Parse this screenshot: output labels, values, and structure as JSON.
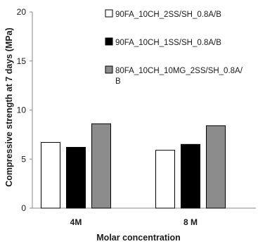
{
  "chart_data": {
    "type": "bar",
    "categories": [
      "4M",
      "8 M"
    ],
    "series": [
      {
        "name": "90FA_10CH_2SS/SH_0.8A/B",
        "values": [
          6.7,
          5.9
        ],
        "color": "#ffffff"
      },
      {
        "name": "90FA_10CH_1SS/SH_0.8A/B",
        "values": [
          6.2,
          6.5
        ],
        "color": "#000000"
      },
      {
        "name": "80FA_10CH_10MG_2SS/SH_0.8A/B",
        "values": [
          8.6,
          8.4
        ],
        "color": "#8c8c8c"
      }
    ],
    "title": "",
    "xlabel": "Molar concentration",
    "ylabel": "Compressive strength at 7 days (MPa)",
    "ylim": [
      0,
      20
    ],
    "yticks": [
      0,
      5,
      10,
      15,
      20
    ],
    "grid": false,
    "legend_position": "top-right"
  }
}
